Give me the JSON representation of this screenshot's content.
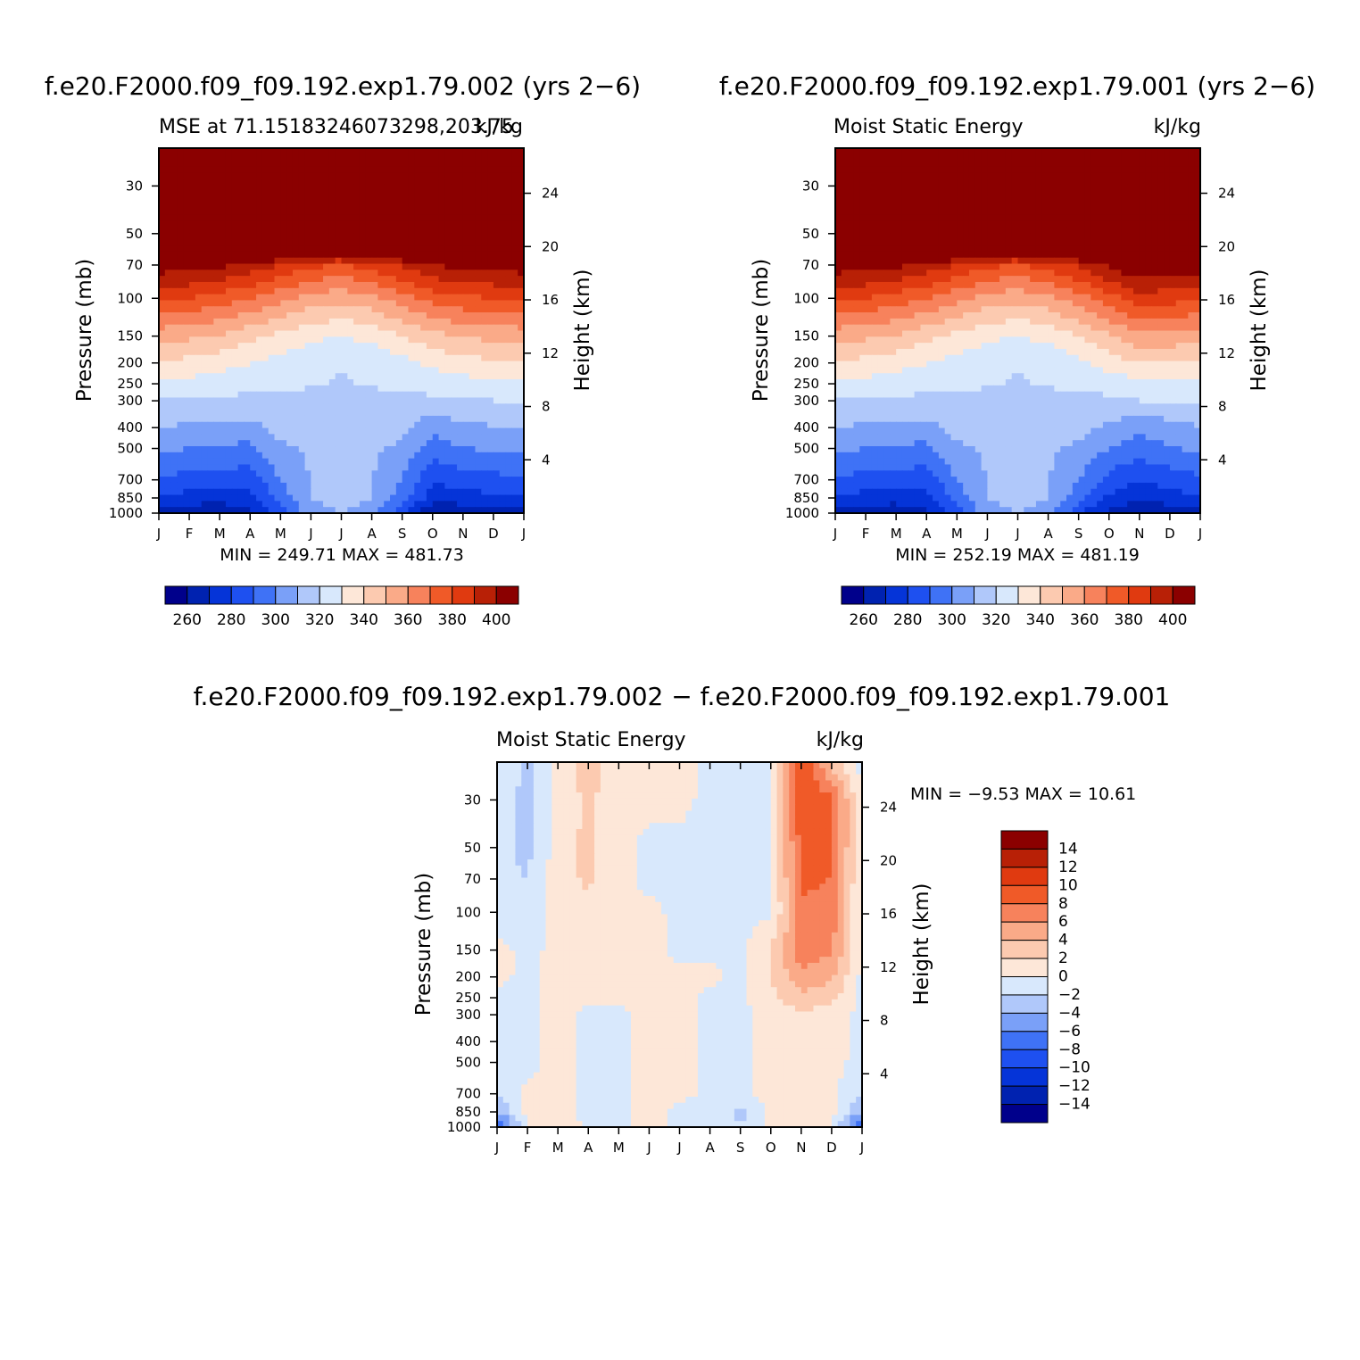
{
  "months": [
    "J",
    "F",
    "M",
    "A",
    "M",
    "J",
    "J",
    "A",
    "S",
    "O",
    "N",
    "D",
    "J"
  ],
  "pressure_ticks": [
    30,
    50,
    70,
    100,
    150,
    200,
    250,
    300,
    400,
    500,
    700,
    850,
    1000
  ],
  "height_ticks": [
    4,
    8,
    12,
    16,
    20,
    24
  ],
  "axis_labels": {
    "pressure": "Pressure (mb)",
    "height": "Height (km)"
  },
  "bottom_title": "f.e20.F2000.f09_f09.192.exp1.79.002 − f.e20.F2000.f09_f09.192.exp1.79.001",
  "colors": {
    "mse_palette": [
      "#00008b",
      "#0022b0",
      "#0534d8",
      "#1e50f0",
      "#3f72f6",
      "#7aa0f8",
      "#b0c8fa",
      "#d8e8fc",
      "#fde7d8",
      "#fccab0",
      "#faaa88",
      "#f7825c",
      "#f05a28",
      "#e03a10",
      "#b82006",
      "#8b0000"
    ],
    "diff_palette": [
      "#00008b",
      "#0022b0",
      "#0534d8",
      "#1e50f0",
      "#3f72f6",
      "#7aa0f8",
      "#b0c8fa",
      "#d8e8fc",
      "#fde7d8",
      "#fccab0",
      "#faaa88",
      "#f7825c",
      "#f05a28",
      "#e03a10",
      "#b82006",
      "#8b0000"
    ]
  },
  "chart_data": [
    {
      "type": "contour",
      "title": "f.e20.F2000.f09_f09.192.exp1.79.002 (yrs 2−6)",
      "subtitle_left": "MSE at 71.15183246073298,203.75",
      "subtitle_right": "kJ/kg",
      "xlabel": "",
      "ylabel": "Pressure (mb)",
      "ylabel_right": "Height (km)",
      "min": 249.71,
      "max": 481.73,
      "min_label": "MIN = 249.71  MAX = 481.73",
      "levels": [
        250,
        260,
        270,
        280,
        290,
        300,
        310,
        320,
        330,
        340,
        350,
        360,
        370,
        380,
        390,
        400
      ],
      "colorbar_labels": [
        "260",
        "280",
        "300",
        "320",
        "340",
        "360",
        "380",
        "400"
      ],
      "pressure_levels": [
        20,
        30,
        50,
        70,
        100,
        150,
        200,
        250,
        300,
        400,
        500,
        700,
        850,
        1000
      ],
      "values": [
        [
          482,
          482,
          482,
          482,
          482,
          482,
          482,
          482,
          482,
          482,
          482,
          482,
          482
        ],
        [
          480,
          480,
          480,
          480,
          480,
          480,
          480,
          480,
          480,
          480,
          480,
          480,
          480
        ],
        [
          440,
          440,
          440,
          440,
          440,
          440,
          440,
          440,
          440,
          440,
          440,
          440,
          440
        ],
        [
          396,
          395,
          392,
          387,
          380,
          372,
          370,
          374,
          382,
          390,
          394,
          395,
          396
        ],
        [
          372,
          370,
          366,
          360,
          353,
          346,
          343,
          347,
          356,
          364,
          368,
          370,
          372
        ],
        [
          344,
          342,
          339,
          333,
          327,
          322,
          320,
          323,
          330,
          337,
          341,
          343,
          344
        ],
        [
          329,
          327,
          324,
          320,
          316,
          313,
          311,
          313,
          317,
          322,
          326,
          328,
          329
        ],
        [
          318,
          317,
          314,
          313,
          312,
          311,
          309,
          311,
          312,
          314,
          316,
          317,
          318
        ],
        [
          310,
          309,
          308,
          308,
          307,
          307,
          306,
          307,
          307,
          308,
          309,
          310,
          310
        ],
        [
          300,
          298,
          297,
          296,
          304,
          305,
          305,
          305,
          303,
          292,
          298,
          299,
          300
        ],
        [
          292,
          290,
          289,
          287,
          298,
          302,
          303,
          302,
          298,
          285,
          290,
          291,
          292
        ],
        [
          278,
          277,
          276,
          274,
          290,
          300,
          302,
          300,
          290,
          270,
          276,
          277,
          278
        ],
        [
          268,
          266,
          265,
          266,
          285,
          300,
          305,
          300,
          285,
          264,
          266,
          267,
          268
        ],
        [
          255,
          252,
          251,
          258,
          275,
          296,
          300,
          295,
          272,
          250,
          252,
          253,
          255
        ]
      ]
    },
    {
      "type": "contour",
      "title": "f.e20.F2000.f09_f09.192.exp1.79.001 (yrs 2−6)",
      "subtitle_left": "Moist Static Energy",
      "subtitle_right": "kJ/kg",
      "xlabel": "",
      "ylabel": "Pressure (mb)",
      "ylabel_right": "Height (km)",
      "min": 252.19,
      "max": 481.19,
      "min_label": "MIN = 252.19  MAX = 481.19",
      "levels": [
        250,
        260,
        270,
        280,
        290,
        300,
        310,
        320,
        330,
        340,
        350,
        360,
        370,
        380,
        390,
        400
      ],
      "colorbar_labels": [
        "260",
        "280",
        "300",
        "320",
        "340",
        "360",
        "380",
        "400"
      ],
      "pressure_levels": [
        20,
        30,
        50,
        70,
        100,
        150,
        200,
        250,
        300,
        400,
        500,
        700,
        850,
        1000
      ],
      "values": [
        [
          481,
          481,
          481,
          481,
          481,
          481,
          481,
          481,
          481,
          481,
          481,
          481,
          481
        ],
        [
          479,
          479,
          479,
          479,
          479,
          479,
          479,
          479,
          479,
          479,
          479,
          479,
          479
        ],
        [
          440,
          440,
          440,
          440,
          440,
          440,
          440,
          440,
          440,
          440,
          440,
          440,
          440
        ],
        [
          396,
          395,
          392,
          387,
          380,
          372,
          370,
          374,
          382,
          392,
          400,
          398,
          396
        ],
        [
          372,
          370,
          366,
          360,
          353,
          346,
          343,
          347,
          356,
          366,
          376,
          374,
          372
        ],
        [
          344,
          342,
          339,
          333,
          327,
          322,
          320,
          323,
          330,
          339,
          348,
          346,
          344
        ],
        [
          329,
          327,
          324,
          320,
          316,
          313,
          311,
          313,
          317,
          324,
          330,
          330,
          329
        ],
        [
          318,
          317,
          314,
          313,
          312,
          311,
          309,
          311,
          312,
          314,
          318,
          318,
          318
        ],
        [
          310,
          309,
          308,
          308,
          307,
          307,
          306,
          307,
          307,
          308,
          310,
          310,
          310
        ],
        [
          300,
          298,
          297,
          296,
          304,
          305,
          305,
          305,
          303,
          298,
          292,
          296,
          300
        ],
        [
          292,
          290,
          289,
          287,
          298,
          302,
          303,
          302,
          298,
          290,
          286,
          289,
          292
        ],
        [
          278,
          277,
          276,
          274,
          290,
          300,
          302,
          300,
          290,
          276,
          270,
          274,
          278
        ],
        [
          268,
          266,
          265,
          266,
          285,
          300,
          305,
          300,
          285,
          268,
          262,
          266,
          268
        ],
        [
          255,
          253,
          252,
          258,
          275,
          296,
          300,
          295,
          272,
          256,
          250,
          253,
          255
        ]
      ]
    },
    {
      "type": "contour",
      "title": "f.e20.F2000.f09_f09.192.exp1.79.002 − f.e20.F2000.f09_f09.192.exp1.79.001",
      "subtitle_left": "Moist Static Energy",
      "subtitle_right": "kJ/kg",
      "xlabel": "",
      "ylabel": "Pressure (mb)",
      "ylabel_right": "Height (km)",
      "min": -9.53,
      "max": 10.61,
      "min_label": "MIN =   −9.53 MAX =   10.61",
      "levels": [
        -14,
        -12,
        -10,
        -8,
        -6,
        -4,
        -2,
        0,
        2,
        4,
        6,
        8,
        10,
        12,
        14
      ],
      "colorbar_labels": [
        "14",
        "12",
        "10",
        "8",
        "6",
        "4",
        "2",
        "0",
        "−2",
        "−4",
        "−6",
        "−8",
        "−10",
        "−12",
        "−14"
      ],
      "pressure_levels": [
        20,
        30,
        50,
        70,
        100,
        150,
        200,
        250,
        300,
        400,
        500,
        700,
        850,
        1000
      ],
      "values": [
        [
          -0.5,
          -2.5,
          0.5,
          3.5,
          0.5,
          0.5,
          0.5,
          -0.5,
          -1.0,
          -0.5,
          10.5,
          3.0,
          -0.5
        ],
        [
          -1.0,
          -2.5,
          0.5,
          2.5,
          0.5,
          0.5,
          0.5,
          -0.5,
          -1.0,
          -0.5,
          10.0,
          8.5,
          -0.5
        ],
        [
          -1.5,
          -2.5,
          1.0,
          2.5,
          0.5,
          -0.5,
          -0.5,
          -0.5,
          -1.0,
          -0.5,
          8.5,
          8.5,
          -0.5
        ],
        [
          -1.5,
          -2.0,
          1.0,
          2.5,
          0.5,
          -0.5,
          -0.5,
          -0.5,
          -0.5,
          -0.5,
          8.5,
          8.0,
          -0.5
        ],
        [
          -0.5,
          -2.0,
          1.0,
          1.0,
          0.5,
          0.5,
          -0.5,
          -0.5,
          -0.5,
          -0.5,
          7.5,
          7.0,
          -0.5
        ],
        [
          0.5,
          -0.5,
          0.5,
          0.5,
          0.5,
          0.5,
          -0.5,
          -0.5,
          -0.5,
          2.0,
          7.0,
          6.5,
          -0.5
        ],
        [
          0.5,
          -0.5,
          0.5,
          0.5,
          0.5,
          0.5,
          0.5,
          0.5,
          -0.5,
          2.0,
          5.5,
          4.5,
          -0.5
        ],
        [
          -0.5,
          -0.5,
          0.5,
          0.5,
          0.5,
          0.5,
          0.5,
          -0.5,
          -0.5,
          1.5,
          3.5,
          2.5,
          -0.5
        ],
        [
          -0.5,
          -0.5,
          0.5,
          -0.5,
          -0.5,
          0.5,
          0.5,
          -0.5,
          -0.5,
          0.5,
          1.5,
          1.0,
          -0.5
        ],
        [
          -0.5,
          -0.5,
          0.5,
          -0.5,
          -0.5,
          0.5,
          0.5,
          -0.5,
          -0.5,
          0.5,
          0.5,
          0.5,
          -0.5
        ],
        [
          -0.5,
          -0.5,
          0.5,
          -0.5,
          -0.5,
          0.5,
          0.5,
          -0.5,
          -0.5,
          0.5,
          0.5,
          0.5,
          -0.5
        ],
        [
          -2.0,
          0.5,
          0.5,
          -0.5,
          -0.5,
          0.5,
          0.5,
          -0.5,
          -0.5,
          0.5,
          0.5,
          0.5,
          -2.0
        ],
        [
          -4.0,
          0.5,
          0.5,
          -0.5,
          -0.5,
          0.5,
          -0.5,
          -0.5,
          -2.5,
          0.5,
          0.5,
          0.5,
          -4.0
        ],
        [
          -9.5,
          0.5,
          2.0,
          -0.5,
          -0.5,
          0.5,
          -0.5,
          -0.5,
          -2.0,
          0.5,
          2.0,
          0.5,
          -9.5
        ]
      ]
    }
  ]
}
